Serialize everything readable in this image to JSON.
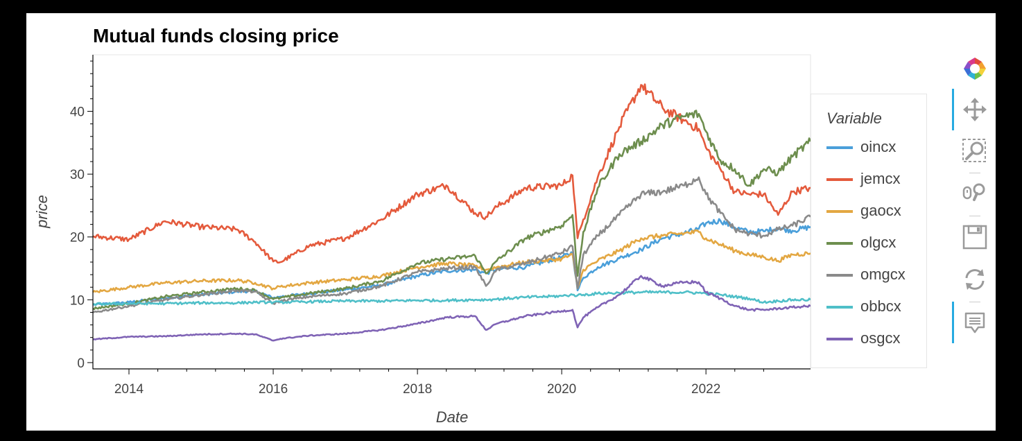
{
  "chart_data": {
    "type": "line",
    "title": "Mutual funds closing price",
    "xlabel": "Date",
    "ylabel": "price",
    "legend_title": "Variable",
    "legend_position": "right",
    "xlim": [
      2013.5,
      2023.45
    ],
    "ylim": [
      -1,
      49
    ],
    "x_ticks": [
      2014,
      2016,
      2018,
      2020,
      2022
    ],
    "y_ticks": [
      0,
      10,
      20,
      30,
      40
    ],
    "x": [
      2013.5,
      2014.0,
      2014.5,
      2015.0,
      2015.5,
      2015.75,
      2016.0,
      2016.1,
      2016.5,
      2017.0,
      2017.5,
      2018.0,
      2018.4,
      2018.8,
      2018.95,
      2019.1,
      2019.5,
      2020.0,
      2020.15,
      2020.22,
      2020.3,
      2020.5,
      2020.8,
      2021.1,
      2021.4,
      2021.7,
      2021.9,
      2022.0,
      2022.2,
      2022.4,
      2022.6,
      2022.8,
      2023.0,
      2023.2,
      2023.45
    ],
    "series": [
      {
        "name": "oincx",
        "color": "#4a9fda",
        "values": [
          9.2,
          9.6,
          10.3,
          10.8,
          11.3,
          11.4,
          10.3,
          10.5,
          11.0,
          11.6,
          12.3,
          13.8,
          14.6,
          14.8,
          14.2,
          14.9,
          15.2,
          16.8,
          17.5,
          11.5,
          13.5,
          15.2,
          16.6,
          18.0,
          19.8,
          20.6,
          21.3,
          22.2,
          22.6,
          21.5,
          20.8,
          20.9,
          21.4,
          21.0,
          21.6
        ]
      },
      {
        "name": "jemcx",
        "color": "#e45a3c",
        "values": [
          20.1,
          19.6,
          22.5,
          21.6,
          21.2,
          19.2,
          16.1,
          16.0,
          18.6,
          19.8,
          22.8,
          26.8,
          28.2,
          23.8,
          23.2,
          24.8,
          27.8,
          28.2,
          29.8,
          19.8,
          22.8,
          29.5,
          37.5,
          44.2,
          40.5,
          38.5,
          37.2,
          34.2,
          30.8,
          27.2,
          26.8,
          26.8,
          23.5,
          27.2,
          27.8
        ]
      },
      {
        "name": "gaocx",
        "color": "#e3a742",
        "values": [
          11.2,
          12.0,
          12.7,
          13.0,
          13.1,
          12.7,
          11.8,
          12.1,
          12.7,
          13.2,
          13.8,
          15.2,
          15.8,
          15.4,
          14.8,
          15.2,
          16.0,
          16.5,
          17.2,
          11.8,
          14.8,
          16.2,
          17.8,
          19.8,
          20.2,
          20.6,
          20.8,
          19.8,
          18.8,
          17.8,
          17.2,
          16.8,
          16.2,
          17.2,
          17.4
        ]
      },
      {
        "name": "olgcx",
        "color": "#6d8e4e",
        "values": [
          8.6,
          9.4,
          10.5,
          11.2,
          11.8,
          11.5,
          10.1,
          10.3,
          11.0,
          11.8,
          13.0,
          15.8,
          16.5,
          17.0,
          14.2,
          16.2,
          19.8,
          21.8,
          23.5,
          13.8,
          20.8,
          27.8,
          33.2,
          35.2,
          37.8,
          39.2,
          39.6,
          36.8,
          32.2,
          30.8,
          28.2,
          30.8,
          30.2,
          32.8,
          35.2
        ]
      },
      {
        "name": "omgcx",
        "color": "#8a8a8a",
        "values": [
          8.0,
          9.0,
          10.0,
          10.8,
          11.5,
          11.3,
          9.4,
          9.8,
          10.5,
          11.0,
          12.2,
          14.4,
          15.0,
          15.2,
          12.2,
          14.8,
          15.8,
          17.5,
          18.5,
          11.8,
          17.2,
          20.2,
          23.5,
          26.8,
          27.2,
          28.2,
          29.5,
          26.8,
          23.8,
          21.2,
          20.5,
          20.2,
          21.2,
          21.8,
          23.2
        ]
      },
      {
        "name": "obbcx",
        "color": "#4fbfc8",
        "values": [
          9.3,
          9.4,
          9.4,
          9.5,
          9.5,
          9.6,
          9.6,
          9.6,
          9.7,
          9.8,
          9.8,
          9.9,
          9.9,
          10.0,
          10.0,
          10.1,
          10.4,
          10.6,
          10.8,
          10.7,
          10.8,
          11.0,
          11.1,
          11.2,
          11.2,
          11.2,
          11.1,
          11.0,
          10.8,
          10.5,
          10.2,
          9.6,
          9.8,
          10.0,
          10.0
        ]
      },
      {
        "name": "osgcx",
        "color": "#7f63b5",
        "values": [
          3.7,
          4.1,
          4.2,
          4.5,
          4.6,
          4.5,
          3.5,
          3.8,
          4.3,
          4.6,
          5.2,
          6.2,
          7.2,
          7.4,
          5.2,
          6.2,
          7.4,
          8.2,
          8.4,
          5.6,
          7.2,
          8.8,
          10.8,
          13.8,
          12.2,
          12.8,
          12.8,
          11.2,
          10.2,
          9.0,
          8.4,
          8.4,
          8.6,
          8.8,
          9.0
        ]
      }
    ]
  },
  "toolbar": {
    "tools": [
      {
        "name": "logo",
        "icon": "bokeh-logo"
      },
      {
        "name": "pan",
        "icon": "pan-icon",
        "active": true
      },
      {
        "name": "box-zoom",
        "icon": "box-zoom-icon"
      },
      {
        "name": "wheel-zoom",
        "icon": "wheel-zoom-icon"
      },
      {
        "name": "save",
        "icon": "save-icon"
      },
      {
        "name": "reset",
        "icon": "reset-icon"
      },
      {
        "name": "hover",
        "icon": "hover-icon",
        "active": true
      }
    ]
  }
}
